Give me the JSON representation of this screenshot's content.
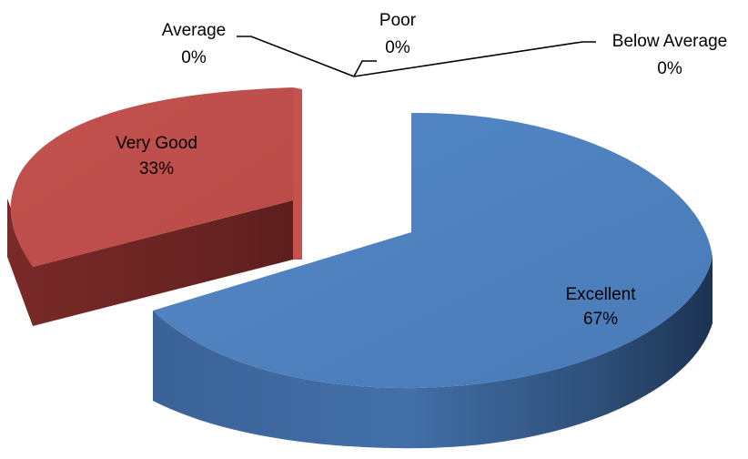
{
  "chart_data": {
    "type": "pie",
    "style": "3d-exploded",
    "categories": [
      "Excellent",
      "Very Good",
      "Average",
      "Poor",
      "Below Average"
    ],
    "values": [
      67,
      33,
      0,
      0,
      0
    ],
    "labels": [
      {
        "name": "Excellent",
        "pct": "67%",
        "color": "#4F81BD"
      },
      {
        "name": "Very Good",
        "pct": "33%",
        "color": "#C0504D"
      },
      {
        "name": "Average",
        "pct": "0%",
        "color": "#9BBB59"
      },
      {
        "name": "Poor",
        "pct": "0%",
        "color": "#8064A2"
      },
      {
        "name": "Below Average",
        "pct": "0%",
        "color": "#4BACC6"
      }
    ],
    "legend": "none",
    "grid": false
  }
}
